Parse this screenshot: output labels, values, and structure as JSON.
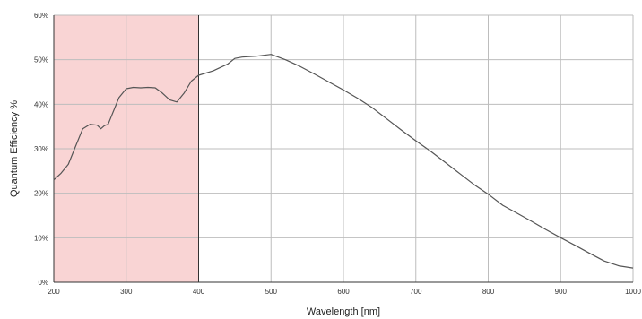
{
  "chart_data": {
    "type": "line",
    "title": "",
    "xlabel": "Wavelength [nm]",
    "ylabel": "Quantum Efficiency %",
    "xlim": [
      200,
      1000
    ],
    "ylim": [
      0,
      60
    ],
    "x_ticks": [
      200,
      300,
      400,
      500,
      600,
      700,
      800,
      900,
      1000
    ],
    "y_ticks": [
      0,
      10,
      20,
      30,
      40,
      50,
      60
    ],
    "y_tick_labels": [
      "0%",
      "10%",
      "20%",
      "30%",
      "40%",
      "50%",
      "60%"
    ],
    "grid": true,
    "legend": "none",
    "shaded_region": {
      "x_start": 200,
      "x_end": 400,
      "color": "#f9d4d4"
    },
    "line_color": "#555555",
    "series": [
      {
        "x": [
          200,
          210,
          220,
          230,
          240,
          250,
          260,
          265,
          270,
          275,
          280,
          290,
          300,
          310,
          320,
          330,
          340,
          350,
          360,
          370,
          380,
          390,
          400,
          420,
          440,
          450,
          460,
          480,
          500,
          520,
          540,
          560,
          580,
          600,
          620,
          640,
          660,
          680,
          700,
          720,
          740,
          760,
          780,
          800,
          820,
          840,
          860,
          880,
          900,
          920,
          940,
          960,
          980,
          1000
        ],
        "values": [
          23,
          24.5,
          26.5,
          30.5,
          34.5,
          35.5,
          35.3,
          34.5,
          35.2,
          35.5,
          37.5,
          41.5,
          43.5,
          43.8,
          43.7,
          43.8,
          43.7,
          42.5,
          41.0,
          40.5,
          42.5,
          45.2,
          46.5,
          47.5,
          49.0,
          50.3,
          50.6,
          50.8,
          51.2,
          50.0,
          48.5,
          46.8,
          45.0,
          43.2,
          41.3,
          39.2,
          36.7,
          34.2,
          31.8,
          29.5,
          27.0,
          24.5,
          22.0,
          19.8,
          17.3,
          15.5,
          13.7,
          11.8,
          10.0,
          8.3,
          6.5,
          4.8,
          3.7,
          3.2
        ]
      }
    ]
  }
}
